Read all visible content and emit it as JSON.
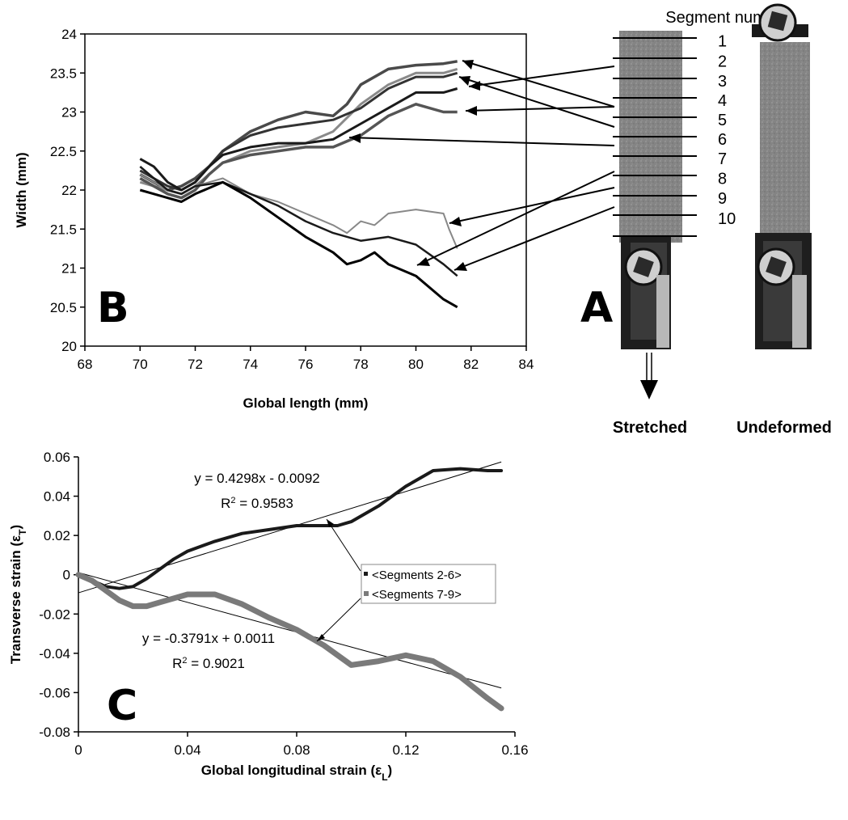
{
  "panel_labels": {
    "a": "A",
    "b": "B",
    "c": "C"
  },
  "photo": {
    "segment_heading": "Segment number",
    "segment_numbers": [
      "1",
      "2",
      "3",
      "4",
      "5",
      "6",
      "7",
      "8",
      "9",
      "10"
    ],
    "stretched_label": "Stretched",
    "undeformed_label": "Undeformed"
  },
  "colors": {
    "ink": "#000000",
    "dark": "#1a1a1a",
    "mid": "#555555",
    "light": "#8a8a8a",
    "photo_bg": "#8c8c8c"
  },
  "chart_data": [
    {
      "id": "B",
      "type": "line",
      "xlabel": "Global length (mm)",
      "ylabel": "Width (mm)",
      "xlim": [
        68,
        84
      ],
      "ylim": [
        20,
        24
      ],
      "xticks": [
        "68",
        "70",
        "72",
        "74",
        "76",
        "78",
        "80",
        "82",
        "84"
      ],
      "yticks": [
        "20",
        "20.5",
        "21",
        "21.5",
        "22",
        "22.5",
        "23",
        "23.5",
        "24"
      ],
      "grid": false,
      "series": [
        {
          "color": "#4a4a4a",
          "width": 3.5,
          "x": [
            70,
            70.5,
            71,
            71.5,
            72,
            72.5,
            73,
            74,
            75,
            76,
            77,
            77.5,
            78,
            79,
            80,
            81,
            81.5
          ],
          "y": [
            22.2,
            22.1,
            22.0,
            22.05,
            22.15,
            22.3,
            22.5,
            22.75,
            22.9,
            23.0,
            22.95,
            23.1,
            23.35,
            23.55,
            23.6,
            23.62,
            23.65
          ]
        },
        {
          "color": "#8a8a8a",
          "width": 3,
          "x": [
            70,
            70.5,
            71,
            71.5,
            72,
            72.5,
            73,
            74,
            75,
            76,
            77,
            78,
            79,
            80,
            81,
            81.5
          ],
          "y": [
            22.1,
            22.05,
            22.0,
            21.95,
            22.05,
            22.2,
            22.35,
            22.5,
            22.55,
            22.6,
            22.75,
            23.1,
            23.35,
            23.5,
            23.5,
            23.55
          ]
        },
        {
          "color": "#333333",
          "width": 3,
          "x": [
            70,
            70.5,
            71,
            71.5,
            72,
            72.5,
            73,
            74,
            75,
            76,
            77,
            78,
            79,
            80,
            81,
            81.5
          ],
          "y": [
            22.25,
            22.15,
            22.05,
            22.0,
            22.1,
            22.3,
            22.5,
            22.7,
            22.8,
            22.85,
            22.9,
            23.05,
            23.3,
            23.45,
            23.45,
            23.5
          ]
        },
        {
          "color": "#1a1a1a",
          "width": 3,
          "x": [
            70,
            70.5,
            71,
            71.5,
            72,
            72.5,
            73,
            74,
            75,
            76,
            77,
            78,
            79,
            80,
            81,
            81.5
          ],
          "y": [
            22.4,
            22.3,
            22.1,
            22.0,
            22.1,
            22.3,
            22.45,
            22.55,
            22.6,
            22.6,
            22.65,
            22.85,
            23.05,
            23.25,
            23.25,
            23.3
          ]
        },
        {
          "color": "#555555",
          "width": 3.5,
          "x": [
            70,
            70.5,
            71,
            71.5,
            72,
            72.5,
            73,
            74,
            75,
            76,
            77,
            78,
            79,
            80,
            81,
            81.5
          ],
          "y": [
            22.15,
            22.05,
            21.95,
            21.9,
            22.0,
            22.2,
            22.35,
            22.45,
            22.5,
            22.55,
            22.55,
            22.7,
            22.95,
            23.1,
            23.0,
            23.0
          ]
        },
        {
          "color": "#888888",
          "width": 2,
          "x": [
            70,
            70.5,
            71,
            71.5,
            72,
            73,
            74,
            75,
            76,
            77,
            77.5,
            78,
            78.5,
            79,
            80,
            81,
            81.2,
            81.5
          ],
          "y": [
            22.2,
            22.1,
            22.0,
            21.95,
            22.05,
            22.15,
            21.95,
            21.85,
            21.7,
            21.55,
            21.45,
            21.6,
            21.55,
            21.7,
            21.75,
            21.7,
            21.5,
            21.25
          ]
        },
        {
          "color": "#1a1a1a",
          "width": 2.5,
          "x": [
            70,
            70.5,
            71,
            71.5,
            72,
            73,
            74,
            75,
            76,
            77,
            78,
            79,
            80,
            81,
            81.5
          ],
          "y": [
            22.3,
            22.15,
            22.0,
            21.95,
            22.05,
            22.1,
            21.95,
            21.8,
            21.6,
            21.45,
            21.35,
            21.4,
            21.3,
            21.05,
            20.9
          ]
        },
        {
          "color": "#000000",
          "width": 3,
          "x": [
            70,
            70.5,
            71,
            71.5,
            72,
            73,
            74,
            75,
            76,
            77,
            77.5,
            78,
            78.5,
            79,
            80,
            81,
            81.5
          ],
          "y": [
            22.0,
            21.95,
            21.9,
            21.85,
            21.95,
            22.1,
            21.9,
            21.65,
            21.4,
            21.2,
            21.05,
            21.1,
            21.2,
            21.05,
            20.9,
            20.6,
            20.5
          ]
        }
      ]
    },
    {
      "id": "C",
      "type": "scatter",
      "xlabel": "Global longitudinal strain (ε",
      "xlabel_sub": "L",
      "ylabel": "Transverse strain (ε",
      "ylabel_sub": "T",
      "xlim": [
        0,
        0.16
      ],
      "ylim": [
        -0.08,
        0.06
      ],
      "xticks": [
        "0",
        "0.04",
        "0.08",
        "0.12",
        "0.16"
      ],
      "yticks": [
        "-0.08",
        "-0.06",
        "-0.04",
        "-0.02",
        "0",
        "0.02",
        "0.04",
        "0.06"
      ],
      "grid": false,
      "series": [
        {
          "name": "<Segments 2-6>",
          "color": "#1a1a1a",
          "width": 4,
          "x": [
            0,
            0.005,
            0.01,
            0.015,
            0.02,
            0.025,
            0.03,
            0.035,
            0.04,
            0.05,
            0.06,
            0.07,
            0.08,
            0.09,
            0.095,
            0.1,
            0.11,
            0.12,
            0.13,
            0.14,
            0.15,
            0.155
          ],
          "y": [
            0,
            -0.003,
            -0.006,
            -0.007,
            -0.006,
            -0.002,
            0.003,
            0.008,
            0.012,
            0.017,
            0.021,
            0.023,
            0.025,
            0.025,
            0.025,
            0.027,
            0.035,
            0.045,
            0.053,
            0.054,
            0.053,
            0.053
          ]
        },
        {
          "name": "<Segments 7-9>",
          "color": "#7a7a7a",
          "width": 7,
          "x": [
            0,
            0.005,
            0.01,
            0.015,
            0.02,
            0.025,
            0.03,
            0.04,
            0.05,
            0.06,
            0.07,
            0.08,
            0.09,
            0.1,
            0.11,
            0.12,
            0.13,
            0.14,
            0.15,
            0.155
          ],
          "y": [
            0,
            -0.003,
            -0.008,
            -0.013,
            -0.016,
            -0.016,
            -0.014,
            -0.01,
            -0.01,
            -0.015,
            -0.022,
            -0.028,
            -0.036,
            -0.046,
            -0.044,
            -0.041,
            -0.044,
            -0.052,
            -0.063,
            -0.068
          ]
        }
      ],
      "fits": [
        {
          "equation": "y = 0.4298x - 0.0092",
          "r2_prefix": "R",
          "r2_exp": "2",
          "r2_value": " = 0.9583",
          "slope": 0.4298,
          "intercept": -0.0092
        },
        {
          "equation": "y = -0.3791x + 0.0011",
          "r2_prefix": "R",
          "r2_exp": "2",
          "r2_value": " = 0.9021",
          "slope": -0.3791,
          "intercept": 0.0011
        }
      ],
      "legend_position": "center-right"
    }
  ]
}
